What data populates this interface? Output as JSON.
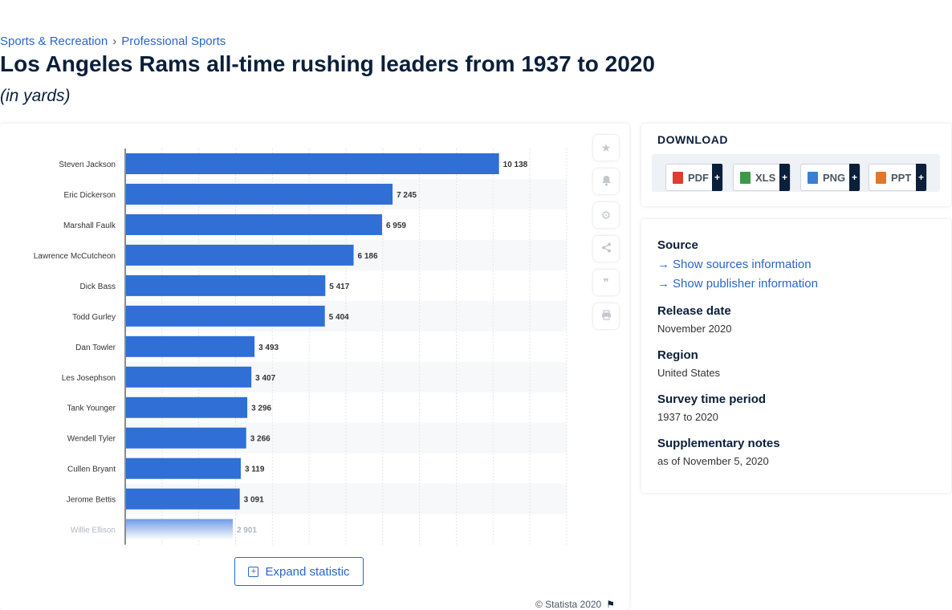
{
  "breadcrumb": [
    "Sports & Recreation",
    "Professional Sports"
  ],
  "breadcrumb_sep": "›",
  "title": "Los Angeles Rams all-time rushing leaders from 1937 to 2020",
  "subtitle": "(in yards)",
  "chart_data": {
    "type": "bar",
    "orientation": "horizontal",
    "categories": [
      "Steven Jackson",
      "Eric Dickerson",
      "Marshall Faulk",
      "Lawrence McCutcheon",
      "Dick Bass",
      "Todd Gurley",
      "Dan Towler",
      "Les Josephson",
      "Tank Younger",
      "Wendell Tyler",
      "Cullen Bryant",
      "Jerome Bettis",
      "Willie Ellison"
    ],
    "values": [
      10138,
      7245,
      6959,
      6186,
      5417,
      5404,
      3493,
      3407,
      3296,
      3266,
      3119,
      3091,
      2901
    ],
    "value_labels": [
      "10 138",
      "7 245",
      "6 959",
      "6 186",
      "5 417",
      "5 404",
      "3 493",
      "3 407",
      "3 296",
      "3 266",
      "3 119",
      "3 091",
      "2 901"
    ],
    "xlim": [
      0,
      12000
    ],
    "bar_color": "#2f6fd6",
    "grid": true
  },
  "tools": [
    {
      "name": "favorite-icon",
      "glyph": "★"
    },
    {
      "name": "notification-icon",
      "glyph": "🔔"
    },
    {
      "name": "settings-icon",
      "glyph": "⚙"
    },
    {
      "name": "share-icon",
      "glyph": "⋔"
    },
    {
      "name": "cite-icon",
      "glyph": "❞"
    },
    {
      "name": "print-icon",
      "glyph": "⎙"
    }
  ],
  "expand_label": "Expand statistic",
  "copyright": "© Statista 2020",
  "download": {
    "title": "DOWNLOAD",
    "buttons": [
      {
        "label": "PDF",
        "color": "#e03c31",
        "plus": "+"
      },
      {
        "label": "XLS",
        "color": "#3c9a4a",
        "plus": "+"
      },
      {
        "label": "PNG",
        "color": "#3a7fd0",
        "plus": "+"
      },
      {
        "label": "PPT",
        "color": "#e0772b",
        "plus": "+"
      }
    ]
  },
  "meta": {
    "source_label": "Source",
    "show_sources": "Show sources information",
    "show_publisher": "Show publisher information",
    "release_label": "Release date",
    "release_value": "November 2020",
    "region_label": "Region",
    "region_value": "United States",
    "period_label": "Survey time period",
    "period_value": "1937 to 2020",
    "notes_label": "Supplementary notes",
    "notes_value": "as of November 5, 2020"
  }
}
